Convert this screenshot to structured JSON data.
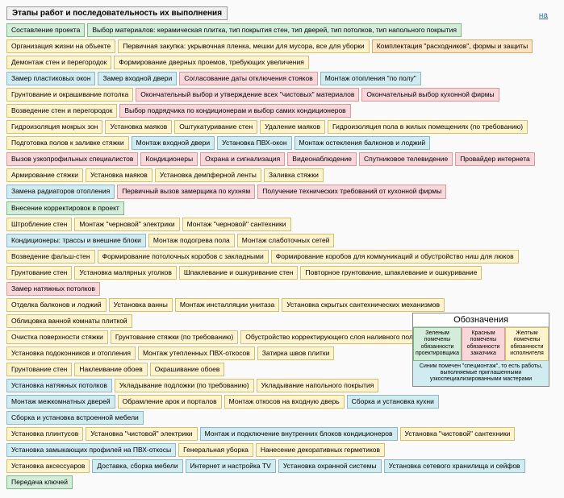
{
  "title": "Этапы работ и последовательность их выполнения",
  "top_link": "на",
  "colors": {
    "green_bg": "#d4edda",
    "green_border": "#7fb87f",
    "red_bg": "#f8d7da",
    "red_border": "#d99",
    "yellow_bg": "#fff3cd",
    "yellow_border": "#d4c068",
    "blue_bg": "#d1ecf1",
    "blue_border": "#8bb8c4",
    "orange_bg": "#ffe4c4",
    "orange_border": "#d4a76a"
  },
  "rows": [
    [
      {
        "t": "Составление проекта",
        "c": "green"
      },
      {
        "t": "Выбор материалов: керамическая плитка, тип покрытия стен, тип дверей, тип потолков, тип напольного покрытия",
        "c": "green"
      }
    ],
    [
      {
        "t": "Организация жизни на объекте",
        "c": "yellow"
      },
      {
        "t": "Первичная закупка: укрывочная пленка, мешки для мусора, все для уборки",
        "c": "yellow"
      },
      {
        "t": "Комплектация \"расходников\", формы и защиты",
        "c": "orange"
      }
    ],
    [
      {
        "t": "Демонтаж стен и перегородок",
        "c": "yellow"
      },
      {
        "t": "Формирование дверных проемов, требующих увеличения",
        "c": "yellow"
      }
    ],
    [
      {
        "t": "Замер пластиковых окон",
        "c": "blue"
      },
      {
        "t": "Замер входной двери",
        "c": "blue"
      },
      {
        "t": "Согласование даты отключения стояков",
        "c": "red"
      },
      {
        "t": "Монтаж отопления \"по полу\"",
        "c": "blue"
      }
    ],
    [
      {
        "t": "Грунтование и окрашивание потолка",
        "c": "yellow"
      },
      {
        "t": "Окончательный выбор и утверждение всех \"чистовых\" материалов",
        "c": "red"
      },
      {
        "t": "Окончательный выбор кухонной фирмы",
        "c": "red"
      }
    ],
    [
      {
        "t": "Возведение стен и перегородок",
        "c": "yellow"
      },
      {
        "t": "Выбор подрядчика по кондиционерам и выбор самих кондиционеров",
        "c": "red"
      }
    ],
    [
      {
        "t": "Гидроизоляция мокрых зон",
        "c": "yellow"
      },
      {
        "t": "Установка маяков",
        "c": "yellow"
      },
      {
        "t": "Оштукатуривание стен",
        "c": "yellow"
      },
      {
        "t": "Удаление маяков",
        "c": "yellow"
      },
      {
        "t": "Гидроизоляция пола в жилых помещениях (по требованию)",
        "c": "yellow"
      }
    ],
    [
      {
        "t": "Подготовка полов к заливке стяжки",
        "c": "yellow"
      },
      {
        "t": "Монтаж входной двери",
        "c": "blue"
      },
      {
        "t": "Установка ПВХ-окон",
        "c": "blue"
      },
      {
        "t": "Монтаж остекления балконов и лоджий",
        "c": "blue"
      }
    ],
    [
      {
        "t": "Вызов узкопрофильных специалистов",
        "c": "red"
      },
      {
        "t": "Кондиционеры",
        "c": "red"
      },
      {
        "t": "Охрана и сигнализация",
        "c": "red"
      },
      {
        "t": "Видеонаблюдение",
        "c": "red"
      },
      {
        "t": "Спутниковое телевидение",
        "c": "red"
      },
      {
        "t": "Провайдер интернета",
        "c": "red"
      }
    ],
    [
      {
        "t": "Армирование стяжки",
        "c": "yellow"
      },
      {
        "t": "Установка маяков",
        "c": "yellow"
      },
      {
        "t": "Установка демпферной ленты",
        "c": "yellow"
      },
      {
        "t": "Заливка стяжки",
        "c": "yellow"
      }
    ],
    [
      {
        "t": "Замена радиаторов отопления",
        "c": "blue"
      },
      {
        "t": "Первичный вызов замерщика по кухням",
        "c": "red"
      },
      {
        "t": "Получение технических требований от кухонной фирмы",
        "c": "red"
      },
      {
        "t": "Внесение корректировок в проект",
        "c": "green"
      }
    ],
    [
      {
        "t": "Штробление стен",
        "c": "yellow"
      },
      {
        "t": "Монтаж \"черновой\" электрики",
        "c": "yellow"
      },
      {
        "t": "Монтаж \"черновой\" сантехники",
        "c": "yellow"
      }
    ],
    [
      {
        "t": "Кондиционеры: трассы и внешние блоки",
        "c": "blue"
      },
      {
        "t": "Монтаж подогрева пола",
        "c": "yellow"
      },
      {
        "t": "Монтаж слаботочных сетей",
        "c": "yellow"
      }
    ],
    [
      {
        "t": "Возведение фальш-стен",
        "c": "yellow"
      },
      {
        "t": "Формирование потолочных коробов с закладными",
        "c": "yellow"
      },
      {
        "t": "Формирование коробов для коммуникаций и обустройство ниш для люков",
        "c": "yellow"
      }
    ],
    [
      {
        "t": "Грунтование стен",
        "c": "yellow"
      },
      {
        "t": "Установка малярных уголков",
        "c": "yellow"
      },
      {
        "t": "Шпаклевание и ошкуривание стен",
        "c": "yellow"
      },
      {
        "t": "Повторное грунтование, шпаклевание и ошкуривание",
        "c": "yellow"
      },
      {
        "t": "Замер натяжных потолков",
        "c": "red"
      }
    ],
    [
      {
        "t": "Отделка балконов и лоджий",
        "c": "yellow"
      },
      {
        "t": "Установка ванны",
        "c": "yellow"
      },
      {
        "t": "Монтаж инсталляции унитаза",
        "c": "yellow"
      },
      {
        "t": "Установка скрытых сантехнических механизмов",
        "c": "yellow"
      },
      {
        "t": "Облицовка ванной комнаты плиткой",
        "c": "yellow"
      }
    ],
    [
      {
        "t": "Очистка поверхности стяжки",
        "c": "yellow"
      },
      {
        "t": "Грунтование стяжки (по требованию)",
        "c": "yellow"
      },
      {
        "t": "Обустройство корректирующего слоя наливного пола",
        "c": "yellow"
      }
    ],
    [
      {
        "t": "Установка подоконников и отопления",
        "c": "yellow"
      },
      {
        "t": "Монтаж утепленных ПВХ-откосов",
        "c": "yellow"
      },
      {
        "t": "Затирка швов плитки",
        "c": "yellow"
      }
    ],
    [
      {
        "t": "Грунтование стен",
        "c": "yellow"
      },
      {
        "t": "Наклеивание обоев",
        "c": "yellow"
      },
      {
        "t": "Окрашивание обоев",
        "c": "yellow"
      }
    ],
    [
      {
        "t": "Установка натяжных потолков",
        "c": "blue"
      },
      {
        "t": "Укладывание подложки (по требованию)",
        "c": "yellow"
      },
      {
        "t": "Укладывание напольного покрытия",
        "c": "yellow"
      }
    ],
    [
      {
        "t": "Монтаж межкомнатных дверей",
        "c": "blue"
      },
      {
        "t": "Обрамление арок и порталов",
        "c": "yellow"
      },
      {
        "t": "Монтаж откосов на входную дверь",
        "c": "yellow"
      },
      {
        "t": "Сборка и установка кухни",
        "c": "blue"
      },
      {
        "t": "Сборка и установка встроенной мебели",
        "c": "blue"
      }
    ],
    [
      {
        "t": "Установка плинтусов",
        "c": "yellow"
      },
      {
        "t": "Установка \"чистовой\" электрики",
        "c": "yellow"
      },
      {
        "t": "Монтаж и подключение внутренних блоков кондиционеров",
        "c": "blue"
      },
      {
        "t": "Установка \"чистовой\" сантехники",
        "c": "yellow"
      }
    ],
    [
      {
        "t": "Установка замыкающих профилей на ПВХ-откосы",
        "c": "blue"
      },
      {
        "t": "Генеральная уборка",
        "c": "yellow"
      },
      {
        "t": "Нанесение декоративных герметиков",
        "c": "yellow"
      }
    ],
    [
      {
        "t": "Установка аксессуаров",
        "c": "yellow"
      },
      {
        "t": "Доставка, сборка мебели",
        "c": "blue"
      },
      {
        "t": "Интернет и настройка TV",
        "c": "blue"
      },
      {
        "t": "Установка охранной системы",
        "c": "blue"
      },
      {
        "t": "Установка сетевого хранилища и сейфов",
        "c": "blue"
      },
      {
        "t": "Передача ключей",
        "c": "green"
      }
    ]
  ],
  "legend": {
    "title": "Обозначения",
    "cells": [
      {
        "t": "Зеленым помечены обязанности проектировщика",
        "c": "green"
      },
      {
        "t": "Красным помечены обязанности заказчика",
        "c": "red"
      },
      {
        "t": "Желтым помечены обязанности исполнителя",
        "c": "yellow"
      }
    ],
    "bottom": {
      "t": "Синим помечен \"спецмонтаж\", то есть работы, выполняемые приглашенными узкоспециализированными мастерами",
      "c": "blue"
    }
  }
}
